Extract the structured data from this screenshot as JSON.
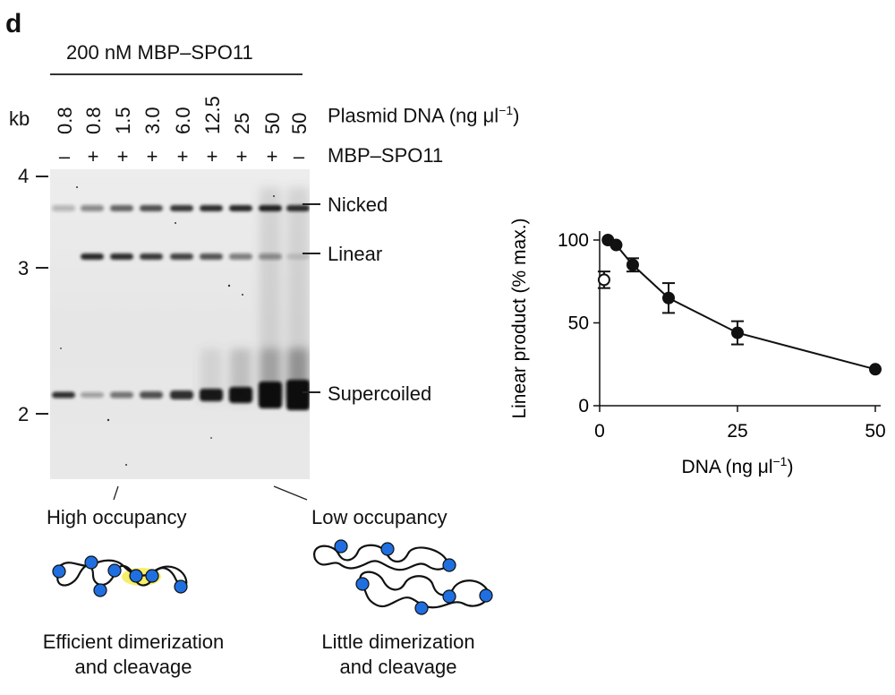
{
  "panel_label": "d",
  "condition_label": "200 nM MBP–SPO11",
  "kb_label": "kb",
  "lanes": [
    {
      "conc": "0.8",
      "sign": "–"
    },
    {
      "conc": "0.8",
      "sign": "+"
    },
    {
      "conc": "1.5",
      "sign": "+"
    },
    {
      "conc": "3.0",
      "sign": "+"
    },
    {
      "conc": "6.0",
      "sign": "+"
    },
    {
      "conc": "12.5",
      "sign": "+"
    },
    {
      "conc": "25",
      "sign": "+"
    },
    {
      "conc": "50",
      "sign": "+"
    },
    {
      "conc": "50",
      "sign": "–"
    }
  ],
  "plasmid_label": "Plasmid DNA (ng μl",
  "plasmid_label_sup": "−1",
  "plasmid_label_end": ")",
  "mbp_label": "MBP–SPO11",
  "size_markers": [
    "4",
    "3",
    "2"
  ],
  "bands": [
    "Nicked",
    "Linear",
    "Supercoiled"
  ],
  "occupancy": {
    "high": "High occupancy",
    "low": "Low occupancy"
  },
  "captions": {
    "left": [
      "Efficient dimerization",
      "and cleavage"
    ],
    "right": [
      "Little dimerization",
      "and cleavage"
    ]
  },
  "colors": {
    "protein": "#1f6fe0",
    "highlight": "#f5ef6a"
  },
  "chart_data": {
    "type": "scatter",
    "xlabel": "DNA (ng μl",
    "xlabel_sup": "−1",
    "xlabel_end": ")",
    "ylabel": "Linear product (% max.)",
    "xlim": [
      0,
      50
    ],
    "ylim": [
      0,
      100
    ],
    "xticks": [
      "0",
      "25",
      "50"
    ],
    "yticks": [
      "0",
      "50",
      "100"
    ],
    "series": [
      {
        "marker": "filled",
        "connected": true,
        "x": [
          1.5,
          3.0,
          6.0,
          12.5,
          25,
          50
        ],
        "y": [
          100,
          97,
          85,
          65,
          44,
          22
        ],
        "err": [
          0,
          0,
          4,
          9,
          7,
          0
        ]
      },
      {
        "marker": "open",
        "connected": false,
        "x": [
          0.8
        ],
        "y": [
          76
        ],
        "err": [
          5
        ]
      }
    ]
  }
}
